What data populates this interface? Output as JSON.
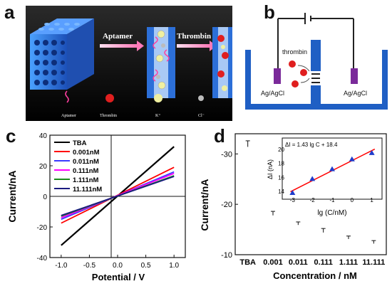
{
  "panels": {
    "a": {
      "letter": "a",
      "step1_label": "Aptamer",
      "step2_label": "Thrombin",
      "legend": [
        "Aptamer",
        "Thrombin",
        "K⁺",
        "Cl⁻"
      ]
    },
    "b": {
      "letter": "b",
      "thrombin_label": "thrombin",
      "left_electrode": "Ag/AgCl",
      "right_electrode": "Ag/AgCl"
    },
    "c": {
      "letter": "c",
      "xlabel": "Potential / V",
      "ylabel": "Current/nA",
      "x_ticks": [
        "-1.0",
        "-0.5",
        "0.0",
        "0.5",
        "1.0"
      ],
      "y_ticks": [
        "40",
        "20",
        "0",
        "-20",
        "-40"
      ],
      "legend": [
        "TBA",
        "0.001nM",
        "0.011nM",
        "0.111nM",
        "1.111nM",
        "11.111nM"
      ]
    },
    "d": {
      "letter": "d",
      "xlabel": "Concentration / nM",
      "ylabel": "Current/nA",
      "y_ticks": [
        "-30",
        "-20",
        "-10"
      ],
      "categories": [
        "TBA",
        "0.001",
        "0.011",
        "0.111",
        "1.111",
        "11.111"
      ],
      "inset": {
        "equation": "ΔI = 1.43 lg C + 18.4",
        "xlabel": "lg (C/nM)",
        "ylabel": "ΔI (nA)",
        "x_ticks": [
          "-3",
          "-2",
          "-1",
          "0",
          "1"
        ],
        "y_ticks": [
          "20",
          "18",
          "16",
          "14"
        ]
      }
    }
  },
  "colors": {
    "TBA": "#000000",
    "0.001nM": "#ff0000",
    "0.011nM": "#3b3bff",
    "0.111nM": "#ff00ff",
    "1.111nM": "#1a8c1a",
    "11.111nM": "#1a1a80",
    "bar": "#ff0000",
    "inset_point": "#1e3ccc",
    "fit_line": "#ff0000",
    "cell_blue": "#1f5fc4",
    "electrode": "#7a2a9a"
  },
  "chart_data": [
    {
      "type": "line",
      "panel": "c",
      "xlabel": "Potential / V",
      "ylabel": "Current/nA",
      "xlim": [
        -1.2,
        1.2
      ],
      "ylim": [
        -40,
        40
      ],
      "x": [
        -1.0,
        1.0
      ],
      "series": [
        {
          "name": "TBA",
          "values": [
            -32,
            32.5
          ]
        },
        {
          "name": "0.001nM",
          "values": [
            -17.5,
            19
          ]
        },
        {
          "name": "0.011nM",
          "values": [
            -15,
            16
          ]
        },
        {
          "name": "0.111nM",
          "values": [
            -14,
            15
          ]
        },
        {
          "name": "1.111nM",
          "values": [
            -13,
            13.5
          ]
        },
        {
          "name": "11.111nM",
          "values": [
            -12.5,
            13
          ]
        }
      ]
    },
    {
      "type": "bar",
      "panel": "d",
      "xlabel": "Concentration / nM",
      "ylabel": "Current/nA",
      "categories": [
        "TBA",
        "0.001",
        "0.011",
        "0.111",
        "1.111",
        "11.111"
      ],
      "values": [
        -32,
        -18.2,
        -16.2,
        -14.8,
        -13.4,
        -12.5
      ],
      "errors": [
        0.6,
        0.4,
        0.3,
        0.4,
        0.3,
        0.3
      ],
      "ylim": [
        -34,
        -10
      ]
    },
    {
      "type": "scatter",
      "panel": "d-inset",
      "xlabel": "lg (C/nM)",
      "ylabel": "ΔI (nA)",
      "x": [
        -3,
        -2,
        -1,
        0,
        1
      ],
      "values": [
        13.8,
        15.8,
        17.2,
        18.6,
        19.5
      ],
      "fit": {
        "slope": 1.43,
        "intercept": 18.4
      },
      "xlim": [
        -3.3,
        1.3
      ],
      "ylim": [
        13.5,
        20
      ]
    }
  ]
}
